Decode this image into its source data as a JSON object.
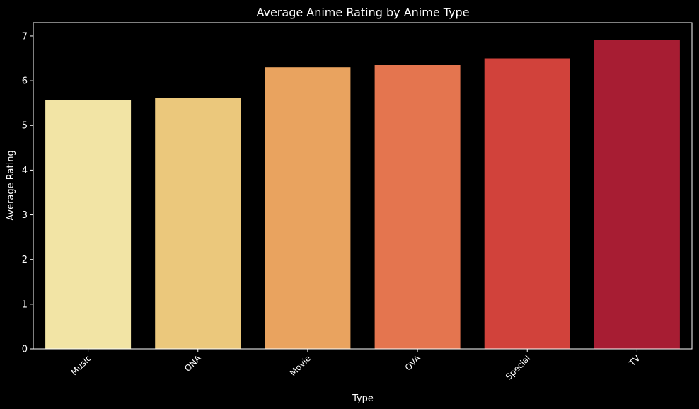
{
  "chart_data": {
    "type": "bar",
    "title": "Average Anime Rating by Anime Type",
    "xlabel": "Type",
    "ylabel": "Average Rating",
    "categories": [
      "Music",
      "ONA",
      "Movie",
      "OVA",
      "Special",
      "TV"
    ],
    "values": [
      5.57,
      5.62,
      6.3,
      6.35,
      6.5,
      6.91
    ],
    "colors": [
      "#f2e4a5",
      "#ebc87c",
      "#e9a35f",
      "#e4754f",
      "#d1423b",
      "#a71d33"
    ],
    "ylim": [
      0,
      7.3
    ],
    "yticks": [
      0,
      1,
      2,
      3,
      4,
      5,
      6,
      7
    ],
    "grid": false,
    "legend": "none",
    "x_tick_rotation_deg": 45,
    "background_color": "#000000",
    "axis_color": "#ffffff"
  }
}
